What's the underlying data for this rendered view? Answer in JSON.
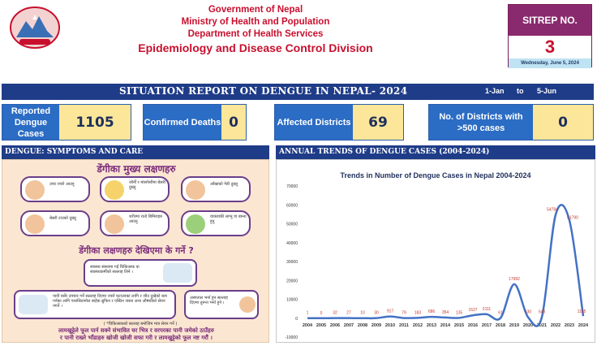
{
  "header": {
    "line1": "Government of Nepal",
    "line2": "Ministry of Health and Population",
    "line3": "Department of Health Services",
    "line4": "Epidemiology and Disease Control Division"
  },
  "sitrep": {
    "label": "SITREP NO.",
    "number": "3",
    "date": "Wednesday, June 5, 2024"
  },
  "banner": {
    "title": "SITUATION REPORT ON DENGUE IN NEPAL- 2024",
    "from": "1-Jan",
    "to_word": "to",
    "to": "5-Jun"
  },
  "stats": [
    {
      "label": "Reported Dengue Cases",
      "value": "1105"
    },
    {
      "label": "Confirmed Deaths",
      "value": "0"
    },
    {
      "label": "Affected Districts",
      "value": "69"
    },
    {
      "label": "No. of Districts with >500 cases",
      "value": "0"
    }
  ],
  "left_section": {
    "title": "DENGUE: SYMPTOMS AND CARE"
  },
  "right_section": {
    "title": "ANNUAL TRENDS OF DENGUE CASES (2004-2024)"
  },
  "poster": {
    "heading1": "डेंगीका मुख्य लक्षणहरु",
    "heading2": "डेंगीका लक्षणहरु देखिएमा के गर्ने ?",
    "symptoms": [
      "उच्च ज्वरो आउनु",
      "जोर्नी र मांसपेशीमा बेसरी दुख्नु",
      "आँखाको गेडी दुख्नु",
      "बेसरी टाउको दुख्नु",
      "शरीरमा रातो बिमिराहरु आउनु",
      "वाकवाकी लाग्नु वा बान्ता हुनु"
    ],
    "care1": "स्वास्थ्य संस्थामा गई चिकित्सक वा स्वास्थ्यकर्मीको सल्लाह लिने ।",
    "care2": "पानी वर्सेर उपचार गर्ने सल्लाह दिएमा ज्वरो घटाउनका लागि र जीउ दुखेको कम गर्नका लागि पारासिटामोल बाहेक ब्रुफिन र एस्प्रिन जस्ता अन्य औषधीको सेवन नगर्ने ।",
    "care3": "अस्पताल भर्ना हुन सल्लाह दिएमा तुरुन्त भर्ना हुने ।",
    "note": "( *चिकित्सकको सल्लाह बमोजिम मात्र सेवन गर्ने )",
    "footer1": "लामखुट्टेले फूल पार्न सक्ने संभावित घर भित्र र वरपरका पानी जमेको ठाउँहरु",
    "footer2": "र पानी राख्ने भाँडाहरु खोजी खोजी सफा गरी र लामखुट्टेको फूल नष्ट गरौं ।"
  },
  "chart_data": {
    "type": "line",
    "title": "Trends in Number of Dengue Cases in Nepal 2004-2024",
    "x": [
      "2004",
      "2005",
      "2006",
      "2007",
      "2008",
      "2009",
      "2010",
      "2011",
      "2012",
      "2013",
      "2014",
      "2015",
      "2016",
      "2017",
      "2018",
      "2019",
      "2020",
      "2021",
      "2022",
      "2023",
      "2024"
    ],
    "values": [
      1,
      0,
      32,
      27,
      10,
      30,
      917,
      79,
      183,
      686,
      354,
      135,
      1527,
      2111,
      61,
      17992,
      530,
      540,
      54784,
      51790,
      1105
    ],
    "data_labels": [
      "1",
      "0",
      "32",
      "27",
      "10",
      "30",
      "917",
      "79",
      "183",
      "686",
      "354",
      "135",
      "1527",
      "2111",
      "61",
      "17992",
      "530",
      "540",
      "54784",
      "51790",
      "1105"
    ],
    "ylim": [
      -10000,
      70000
    ],
    "yticks": [
      "-10000",
      "0",
      "10000",
      "20000",
      "30000",
      "40000",
      "50000",
      "60000",
      "70000"
    ],
    "ytick_values": [
      -10000,
      0,
      10000,
      20000,
      30000,
      40000,
      50000,
      60000,
      70000
    ],
    "colors": {
      "line": "#4472c4",
      "labels": "#c0392b"
    },
    "grid": false,
    "legend": "none"
  }
}
